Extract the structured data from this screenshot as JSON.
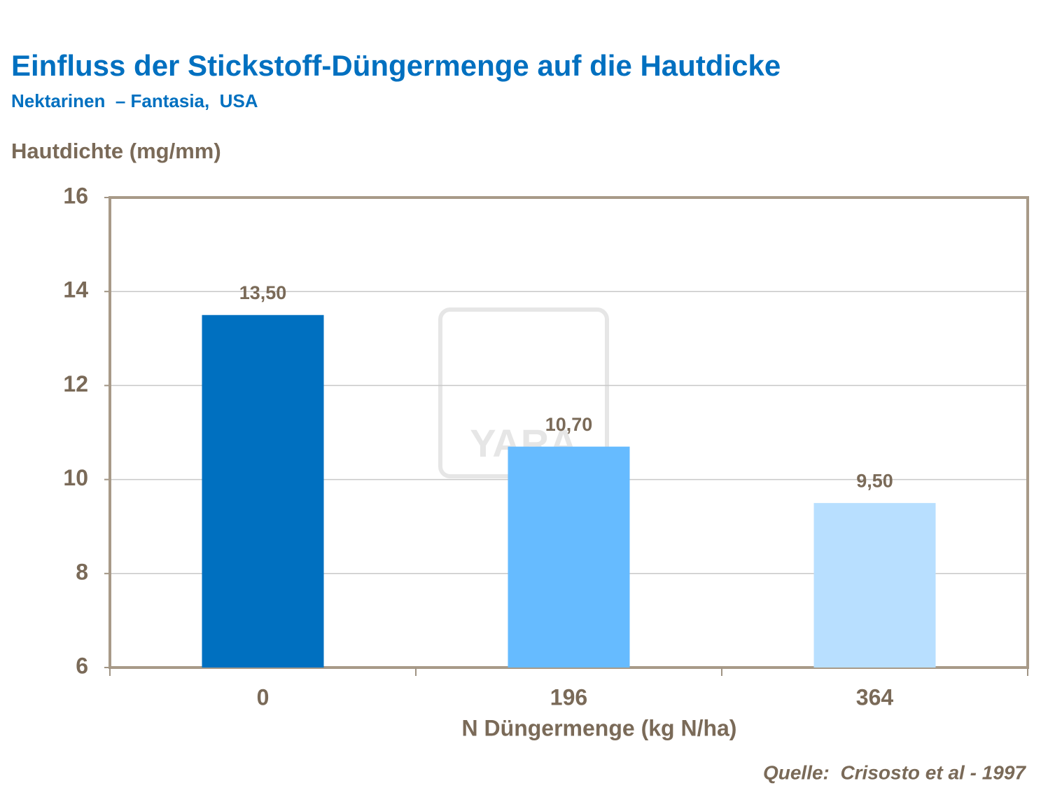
{
  "chart_data": {
    "type": "bar",
    "title": "Einfluss der Stickstoff-Düngermenge auf die Hautdicke",
    "subtitle": "Nektarinen  – Fantasia,  USA",
    "y_label": "Hautdichte (mg/mm)",
    "x_label": "N Düngermenge (kg N/ha)",
    "source": "Quelle:  Crisosto et al - 1997",
    "watermark": "YARA",
    "categories": [
      "0",
      "196",
      "364"
    ],
    "values": [
      13.5,
      10.7,
      9.5
    ],
    "value_labels": [
      "13,50",
      "10,70",
      "9,50"
    ],
    "colors": [
      "#0070c0",
      "#66bbff",
      "#b8dfff"
    ],
    "ylim": [
      6,
      16
    ],
    "yticks": [
      6,
      8,
      10,
      12,
      14,
      16
    ],
    "grid": true
  }
}
